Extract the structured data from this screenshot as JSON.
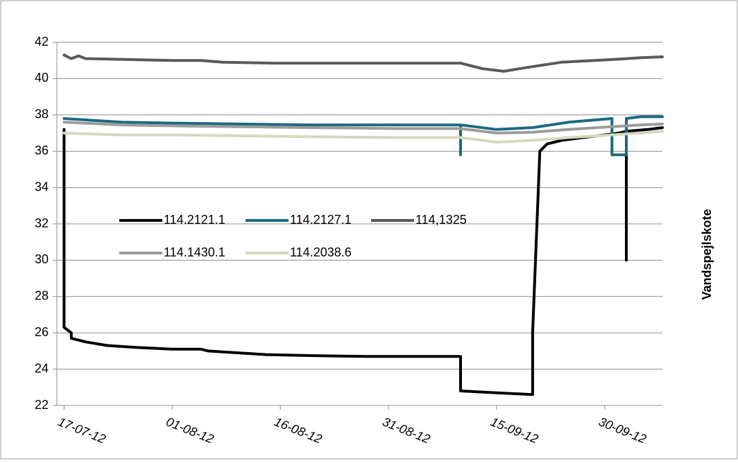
{
  "chart_data": {
    "type": "line",
    "title": "",
    "xlabel": "",
    "ylabel": "Vandspejlskote",
    "ylim": [
      22,
      42
    ],
    "yticks": [
      22,
      24,
      26,
      28,
      30,
      32,
      34,
      36,
      38,
      40,
      42
    ],
    "xlim": [
      "2012-07-16",
      "2012-10-08"
    ],
    "xticks": [
      {
        "date": "2012-07-17",
        "label": "17-07-12"
      },
      {
        "date": "2012-08-01",
        "label": "01-08-12"
      },
      {
        "date": "2012-08-16",
        "label": "16-08-12"
      },
      {
        "date": "2012-08-31",
        "label": "31-08-12"
      },
      {
        "date": "2012-09-15",
        "label": "15-09-12"
      },
      {
        "date": "2012-09-30",
        "label": "30-09-12"
      }
    ],
    "grid": "horizontal",
    "legend_position": "center-left",
    "series": [
      {
        "name": "114.2121.1",
        "color": "#000000",
        "points": [
          [
            "2012-07-17",
            37.2
          ],
          [
            "2012-07-17",
            26.3
          ],
          [
            "2012-07-18",
            26.0
          ],
          [
            "2012-07-18",
            25.7
          ],
          [
            "2012-07-20",
            25.5
          ],
          [
            "2012-07-23",
            25.3
          ],
          [
            "2012-07-27",
            25.2
          ],
          [
            "2012-08-01",
            25.1
          ],
          [
            "2012-08-05",
            25.1
          ],
          [
            "2012-08-06",
            25.0
          ],
          [
            "2012-08-10",
            24.9
          ],
          [
            "2012-08-14",
            24.8
          ],
          [
            "2012-08-20",
            24.75
          ],
          [
            "2012-08-28",
            24.7
          ],
          [
            "2012-09-05",
            24.7
          ],
          [
            "2012-09-10",
            24.7
          ],
          [
            "2012-09-10",
            22.8
          ],
          [
            "2012-09-15",
            22.7
          ],
          [
            "2012-09-20",
            22.6
          ],
          [
            "2012-09-20",
            26.0
          ],
          [
            "2012-09-21",
            36.0
          ],
          [
            "2012-09-22",
            36.4
          ],
          [
            "2012-09-24",
            36.6
          ],
          [
            "2012-09-28",
            36.8
          ],
          [
            "2012-10-02",
            37.0
          ],
          [
            "2012-10-03",
            37.1
          ],
          [
            "2012-10-03",
            30.0
          ],
          [
            "2012-10-03",
            37.1
          ],
          [
            "2012-10-06",
            37.2
          ],
          [
            "2012-10-08",
            37.3
          ]
        ]
      },
      {
        "name": "114.2127.1",
        "color": "#1A6A80",
        "points": [
          [
            "2012-07-17",
            37.8
          ],
          [
            "2012-07-25",
            37.6
          ],
          [
            "2012-08-01",
            37.55
          ],
          [
            "2012-08-10",
            37.5
          ],
          [
            "2012-08-20",
            37.45
          ],
          [
            "2012-09-01",
            37.45
          ],
          [
            "2012-09-10",
            37.45
          ],
          [
            "2012-09-10",
            35.8
          ],
          [
            "2012-09-10",
            37.45
          ],
          [
            "2012-09-15",
            37.2
          ],
          [
            "2012-09-20",
            37.3
          ],
          [
            "2012-09-25",
            37.6
          ],
          [
            "2012-10-01",
            37.8
          ],
          [
            "2012-10-01",
            35.8
          ],
          [
            "2012-10-03",
            35.8
          ],
          [
            "2012-10-03",
            37.8
          ],
          [
            "2012-10-05",
            37.9
          ],
          [
            "2012-10-08",
            37.9
          ]
        ]
      },
      {
        "name": "114,1325",
        "color": "#595959",
        "points": [
          [
            "2012-07-17",
            41.3
          ],
          [
            "2012-07-18",
            41.1
          ],
          [
            "2012-07-19",
            41.25
          ],
          [
            "2012-07-20",
            41.1
          ],
          [
            "2012-08-01",
            41.0
          ],
          [
            "2012-08-05",
            41.0
          ],
          [
            "2012-08-08",
            40.9
          ],
          [
            "2012-08-15",
            40.85
          ],
          [
            "2012-08-25",
            40.85
          ],
          [
            "2012-09-05",
            40.85
          ],
          [
            "2012-09-10",
            40.85
          ],
          [
            "2012-09-13",
            40.55
          ],
          [
            "2012-09-16",
            40.4
          ],
          [
            "2012-09-19",
            40.6
          ],
          [
            "2012-09-24",
            40.9
          ],
          [
            "2012-10-01",
            41.05
          ],
          [
            "2012-10-05",
            41.15
          ],
          [
            "2012-10-08",
            41.2
          ]
        ]
      },
      {
        "name": "114.1430.1",
        "color": "#9C9C9C",
        "points": [
          [
            "2012-07-17",
            37.6
          ],
          [
            "2012-07-25",
            37.45
          ],
          [
            "2012-08-01",
            37.4
          ],
          [
            "2012-08-10",
            37.35
          ],
          [
            "2012-08-20",
            37.3
          ],
          [
            "2012-09-01",
            37.25
          ],
          [
            "2012-09-10",
            37.25
          ],
          [
            "2012-09-15",
            37.0
          ],
          [
            "2012-09-20",
            37.05
          ],
          [
            "2012-09-25",
            37.2
          ],
          [
            "2012-10-01",
            37.35
          ],
          [
            "2012-10-05",
            37.45
          ],
          [
            "2012-10-08",
            37.5
          ]
        ]
      },
      {
        "name": "114.2038.6",
        "color": "#D4D9BE",
        "points": [
          [
            "2012-07-17",
            37.0
          ],
          [
            "2012-07-25",
            36.9
          ],
          [
            "2012-08-01",
            36.9
          ],
          [
            "2012-08-10",
            36.85
          ],
          [
            "2012-08-20",
            36.8
          ],
          [
            "2012-09-01",
            36.75
          ],
          [
            "2012-09-10",
            36.75
          ],
          [
            "2012-09-15",
            36.5
          ],
          [
            "2012-09-20",
            36.6
          ],
          [
            "2012-09-25",
            36.75
          ],
          [
            "2012-10-01",
            36.9
          ],
          [
            "2012-10-05",
            37.0
          ],
          [
            "2012-10-08",
            37.1
          ]
        ]
      }
    ]
  }
}
